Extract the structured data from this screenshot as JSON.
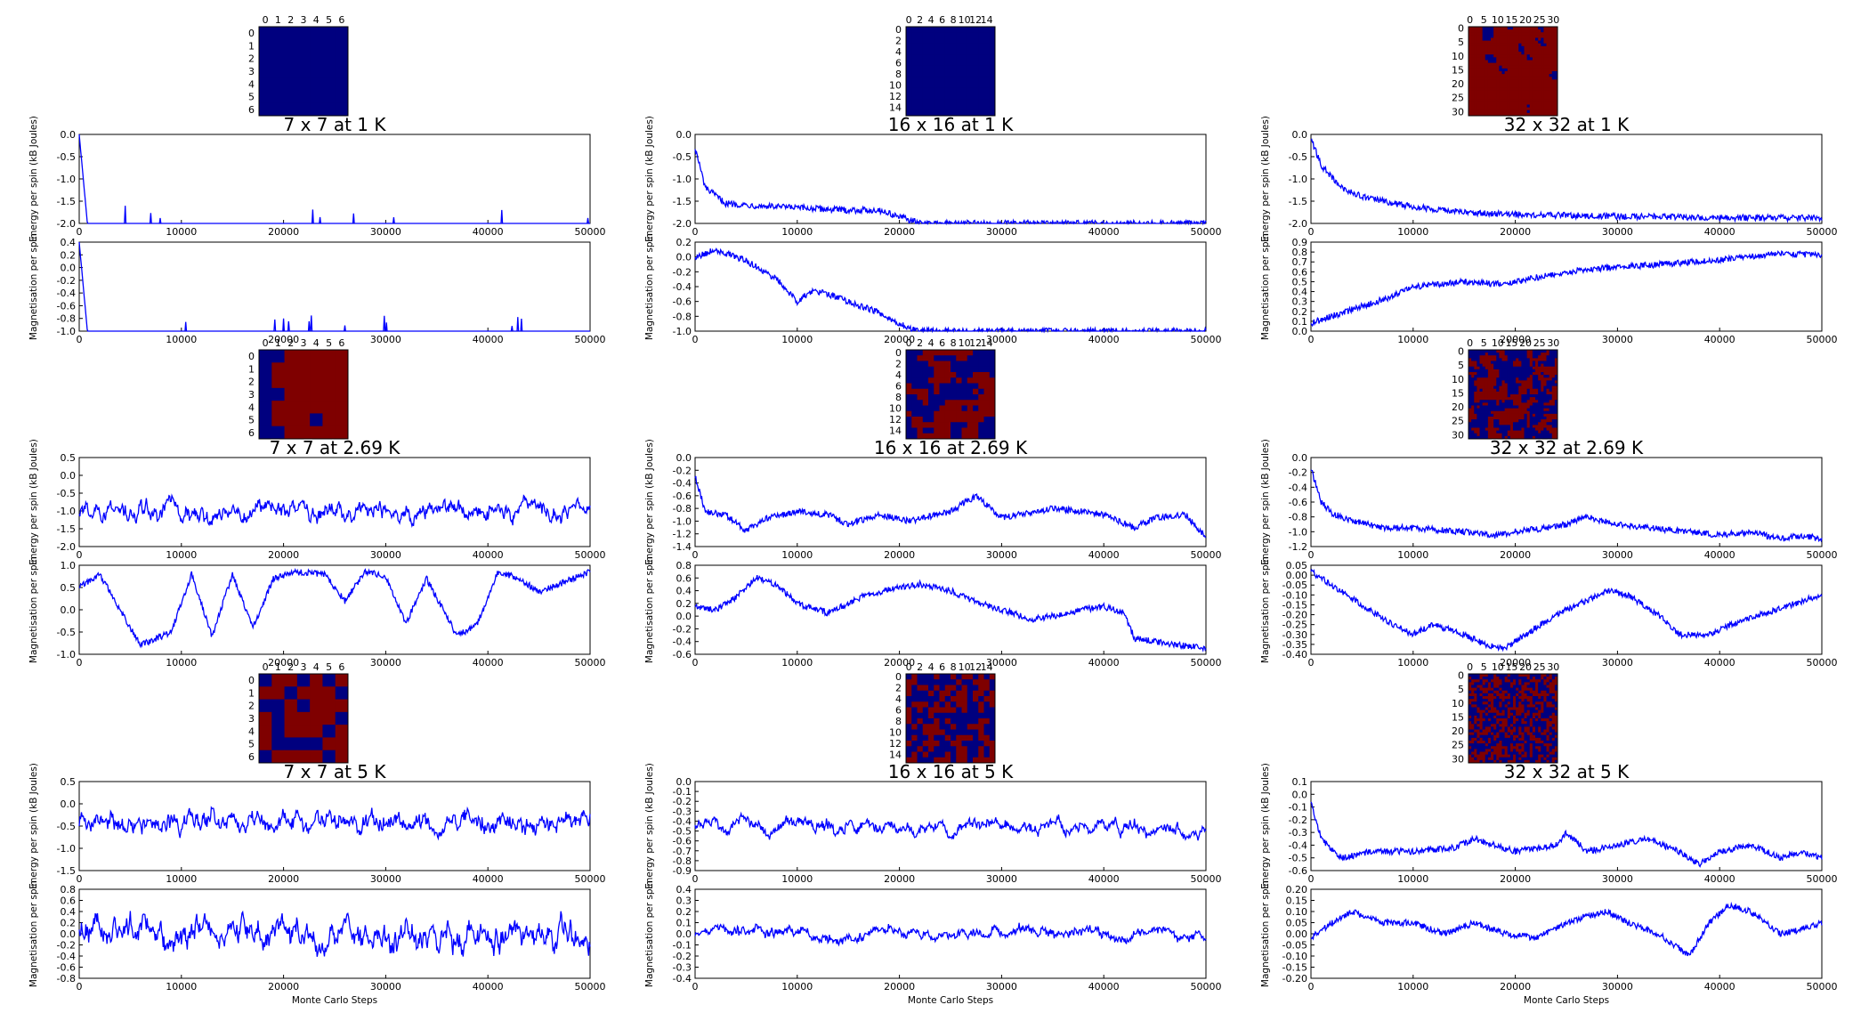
{
  "palette": {
    "spin_up": "#7f0000",
    "spin_down": "#00007f",
    "trace": "#0000ff"
  },
  "labels": {
    "energy": "Energy per spin (kB Joules)",
    "magnetisation": "Magnetisation per spin",
    "monte_carlo": "Monte Carlo Steps"
  },
  "chart_data": [
    {
      "id": "p00",
      "type": "heatmap+line",
      "title": "7 x 7 at 1 K",
      "L": 7,
      "T": 1,
      "lattice_state": "all spins down",
      "lattice_ticks": [
        "0",
        "1",
        "2",
        "3",
        "4",
        "5",
        "6"
      ],
      "energy": {
        "type": "line",
        "ylim": [
          -2.0,
          0.0
        ],
        "yticks": [
          "0.0",
          "-0.5",
          "-1.0",
          "-1.5",
          "-2.0"
        ],
        "baseline": -2.0,
        "settles_by": 800,
        "level": "stays at -2.0 with brief spikes"
      },
      "magnetisation": {
        "type": "line",
        "ylim": [
          -1.0,
          0.4
        ],
        "yticks": [
          "0.4",
          "0.2",
          "0.0",
          "-0.2",
          "-0.4",
          "-0.6",
          "-0.8",
          "-1.0"
        ],
        "baseline": -1.0,
        "settles_by": 800,
        "level": "stays at -1.0 with brief spikes"
      },
      "xlim": [
        0,
        50000
      ],
      "xticks": [
        "0",
        "10000",
        "20000",
        "30000",
        "40000",
        "50000"
      ]
    },
    {
      "id": "p01",
      "type": "heatmap+line",
      "title": "16 x 16 at 1 K",
      "L": 16,
      "T": 1,
      "lattice_state": "all spins down",
      "lattice_ticks": [
        "0",
        "2",
        "4",
        "6",
        "8",
        "10",
        "12",
        "14"
      ],
      "energy": {
        "type": "line",
        "ylim": [
          -2.0,
          0.0
        ],
        "yticks": [
          "0.0",
          "-0.5",
          "-1.0",
          "-1.5",
          "-2.0"
        ],
        "x": [
          0,
          1000,
          3000,
          6000,
          10000,
          15000,
          18000,
          20000,
          22000,
          50000
        ],
        "y": [
          -0.3,
          -1.2,
          -1.55,
          -1.6,
          -1.65,
          -1.7,
          -1.7,
          -1.85,
          -2.0,
          -2.0
        ]
      },
      "magnetisation": {
        "type": "line",
        "ylim": [
          -1.0,
          0.2
        ],
        "yticks": [
          "0.2",
          "0.0",
          "-0.2",
          "-0.4",
          "-0.6",
          "-0.8",
          "-1.0"
        ],
        "x": [
          0,
          2000,
          5000,
          8000,
          10000,
          11500,
          12500,
          15000,
          18000,
          20000,
          21000,
          22000,
          50000
        ],
        "y": [
          0.0,
          0.1,
          -0.05,
          -0.3,
          -0.6,
          -0.45,
          -0.48,
          -0.6,
          -0.75,
          -0.9,
          -0.97,
          -1.0,
          -1.0
        ]
      },
      "xlim": [
        0,
        50000
      ],
      "xticks": [
        "0",
        "10000",
        "20000",
        "30000",
        "40000",
        "50000"
      ]
    },
    {
      "id": "p02",
      "type": "heatmap+line",
      "title": "32 x 32 at 1 K",
      "L": 32,
      "T": 1,
      "lattice_state": "mostly spin up (red) with a few down (blue) domains",
      "lattice_ticks": [
        "0",
        "5",
        "10",
        "15",
        "20",
        "25",
        "30"
      ],
      "energy": {
        "type": "line",
        "ylim": [
          -2.0,
          0.0
        ],
        "yticks": [
          "0.0",
          "-0.5",
          "-1.0",
          "-1.5",
          "-2.0"
        ],
        "x": [
          0,
          1000,
          3000,
          5000,
          8000,
          10000,
          15000,
          20000,
          30000,
          40000,
          50000
        ],
        "y": [
          -0.1,
          -0.7,
          -1.2,
          -1.4,
          -1.55,
          -1.62,
          -1.75,
          -1.8,
          -1.84,
          -1.87,
          -1.88
        ]
      },
      "magnetisation": {
        "type": "line",
        "ylim": [
          0.0,
          0.9
        ],
        "yticks": [
          "0.9",
          "0.8",
          "0.7",
          "0.6",
          "0.5",
          "0.4",
          "0.3",
          "0.2",
          "0.1",
          "0.0"
        ],
        "x": [
          0,
          2000,
          5000,
          8000,
          10000,
          15000,
          18000,
          20000,
          25000,
          30000,
          35000,
          40000,
          45000,
          50000
        ],
        "y": [
          0.08,
          0.15,
          0.25,
          0.35,
          0.45,
          0.5,
          0.48,
          0.5,
          0.6,
          0.65,
          0.68,
          0.72,
          0.78,
          0.77
        ]
      },
      "xlim": [
        0,
        50000
      ],
      "xticks": [
        "0",
        "10000",
        "20000",
        "30000",
        "40000",
        "50000"
      ]
    },
    {
      "id": "p10",
      "type": "heatmap+line",
      "title": "7 x 7 at 2.69 K",
      "L": 7,
      "T": 2.69,
      "lattice_state": "mixed, mostly up (red)",
      "lattice_ticks": [
        "0",
        "1",
        "2",
        "3",
        "4",
        "5",
        "6"
      ],
      "energy": {
        "type": "line",
        "ylim": [
          -2.0,
          0.5
        ],
        "yticks": [
          "0.5",
          "0.0",
          "-0.5",
          "-1.0",
          "-1.5",
          "-2.0"
        ],
        "mean": -1.0,
        "spread": 0.45,
        "smooth": 2
      },
      "magnetisation": {
        "type": "line",
        "ylim": [
          -1.0,
          1.0
        ],
        "yticks": [
          "1.0",
          "0.5",
          "0.0",
          "-0.5",
          "-1.0"
        ],
        "x": [
          0,
          2000,
          4000,
          6000,
          9000,
          11000,
          13000,
          15000,
          17000,
          19000,
          21000,
          24000,
          26000,
          28000,
          30000,
          32000,
          34000,
          37000,
          39000,
          41000,
          43000,
          45000,
          50000
        ],
        "y": [
          0.5,
          0.8,
          0.0,
          -0.8,
          -0.5,
          0.8,
          -0.6,
          0.8,
          -0.4,
          0.7,
          0.85,
          0.8,
          0.2,
          0.85,
          0.75,
          -0.3,
          0.7,
          -0.6,
          -0.3,
          0.85,
          0.7,
          0.4,
          0.85
        ]
      },
      "xlim": [
        0,
        50000
      ],
      "xticks": [
        "0",
        "10000",
        "20000",
        "30000",
        "40000",
        "50000"
      ]
    },
    {
      "id": "p11",
      "type": "heatmap+line",
      "title": "16 x 16 at 2.69 K",
      "L": 16,
      "T": 2.69,
      "lattice_state": "mixed domains",
      "lattice_ticks": [
        "0",
        "2",
        "4",
        "6",
        "8",
        "10",
        "12",
        "14"
      ],
      "energy": {
        "type": "line",
        "ylim": [
          -1.4,
          0.0
        ],
        "yticks": [
          "0.0",
          "-0.2",
          "-0.4",
          "-0.6",
          "-0.8",
          "-1.0",
          "-1.2",
          "-1.4"
        ],
        "x": [
          0,
          1000,
          3000,
          5000,
          7000,
          10000,
          13000,
          15000,
          18000,
          21000,
          25000,
          27500,
          30000,
          35000,
          38000,
          40000,
          43000,
          45000,
          48000,
          50000
        ],
        "y": [
          -0.3,
          -0.85,
          -0.9,
          -1.15,
          -0.95,
          -0.85,
          -0.9,
          -1.05,
          -0.9,
          -1.0,
          -0.85,
          -0.6,
          -0.95,
          -0.8,
          -0.85,
          -0.9,
          -1.1,
          -0.95,
          -0.9,
          -1.25
        ]
      },
      "magnetisation": {
        "type": "line",
        "ylim": [
          -0.6,
          0.8
        ],
        "yticks": [
          "0.8",
          "0.6",
          "0.4",
          "0.2",
          "0.0",
          "-0.2",
          "-0.4",
          "-0.6"
        ],
        "x": [
          0,
          2000,
          4000,
          6000,
          8000,
          10000,
          13000,
          15000,
          17000,
          20000,
          22000,
          25000,
          27000,
          30000,
          33000,
          35000,
          38000,
          40000,
          42000,
          43000,
          45000,
          47000,
          50000
        ],
        "y": [
          0.15,
          0.1,
          0.3,
          0.6,
          0.5,
          0.2,
          0.05,
          0.2,
          0.35,
          0.45,
          0.5,
          0.4,
          0.25,
          0.1,
          -0.05,
          0.0,
          0.1,
          0.15,
          0.05,
          -0.35,
          -0.4,
          -0.45,
          -0.5
        ]
      },
      "xlim": [
        0,
        50000
      ],
      "xticks": [
        "0",
        "10000",
        "20000",
        "30000",
        "40000",
        "50000"
      ]
    },
    {
      "id": "p12",
      "type": "heatmap+line",
      "title": "32 x 32 at 2.69 K",
      "L": 32,
      "T": 2.69,
      "lattice_state": "mixed domains",
      "lattice_ticks": [
        "0",
        "5",
        "10",
        "15",
        "20",
        "25",
        "30"
      ],
      "energy": {
        "type": "line",
        "ylim": [
          -1.2,
          0.0
        ],
        "yticks": [
          "0.0",
          "-0.2",
          "-0.4",
          "-0.6",
          "-0.8",
          "-1.0",
          "-1.2"
        ],
        "x": [
          0,
          1000,
          2000,
          4000,
          7000,
          10000,
          15000,
          18000,
          20000,
          23000,
          25000,
          27000,
          30000,
          33000,
          37000,
          40000,
          43000,
          46000,
          48000,
          50000
        ],
        "y": [
          -0.15,
          -0.6,
          -0.75,
          -0.85,
          -0.95,
          -0.95,
          -1.0,
          -1.05,
          -1.0,
          -0.95,
          -0.9,
          -0.8,
          -0.9,
          -0.95,
          -1.0,
          -1.05,
          -1.0,
          -1.1,
          -1.05,
          -1.1
        ]
      },
      "magnetisation": {
        "type": "line",
        "ylim": [
          -0.4,
          0.05
        ],
        "yticks": [
          "0.05",
          "0.00",
          "-0.05",
          "-0.10",
          "-0.15",
          "-0.20",
          "-0.25",
          "-0.30",
          "-0.35",
          "-0.40"
        ],
        "x": [
          0,
          2000,
          5000,
          8000,
          10000,
          12000,
          15000,
          17000,
          19000,
          21000,
          24000,
          26000,
          29000,
          31000,
          34000,
          36000,
          39000,
          41000,
          44000,
          47000,
          50000
        ],
        "y": [
          0.02,
          -0.05,
          -0.15,
          -0.25,
          -0.3,
          -0.25,
          -0.3,
          -0.35,
          -0.37,
          -0.3,
          -0.2,
          -0.15,
          -0.08,
          -0.1,
          -0.2,
          -0.3,
          -0.3,
          -0.25,
          -0.2,
          -0.15,
          -0.1
        ]
      },
      "xlim": [
        0,
        50000
      ],
      "xticks": [
        "0",
        "10000",
        "20000",
        "30000",
        "40000",
        "50000"
      ]
    },
    {
      "id": "p20",
      "type": "heatmap+line",
      "title": "7 x 7 at 5 K",
      "L": 7,
      "T": 5,
      "lattice_state": "random",
      "lattice_ticks": [
        "0",
        "1",
        "2",
        "3",
        "4",
        "5",
        "6"
      ],
      "energy": {
        "type": "line",
        "ylim": [
          -1.5,
          0.5
        ],
        "yticks": [
          "0.5",
          "0.0",
          "-0.5",
          "-1.0",
          "-1.5"
        ],
        "mean": -0.4,
        "spread": 0.4,
        "smooth": 1
      },
      "magnetisation": {
        "type": "line",
        "ylim": [
          -0.8,
          0.8
        ],
        "yticks": [
          "0.8",
          "0.6",
          "0.4",
          "0.2",
          "0.0",
          "-0.2",
          "-0.4",
          "-0.6",
          "-0.8"
        ],
        "mean": 0.0,
        "spread": 0.45,
        "smooth": 2
      },
      "xlim": [
        0,
        50000
      ],
      "xticks": [
        "0",
        "10000",
        "20000",
        "30000",
        "40000",
        "50000"
      ],
      "xlabel": "Monte Carlo Steps"
    },
    {
      "id": "p21",
      "type": "heatmap+line",
      "title": "16 x 16 at 5 K",
      "L": 16,
      "T": 5,
      "lattice_state": "random",
      "lattice_ticks": [
        "0",
        "2",
        "4",
        "6",
        "8",
        "10",
        "12",
        "14"
      ],
      "energy": {
        "type": "line",
        "ylim": [
          -0.9,
          0.0
        ],
        "yticks": [
          "0.0",
          "-0.1",
          "-0.2",
          "-0.3",
          "-0.4",
          "-0.5",
          "-0.6",
          "-0.7",
          "-0.8",
          "-0.9"
        ],
        "mean": -0.45,
        "spread": 0.15,
        "smooth": 3
      },
      "magnetisation": {
        "type": "line",
        "ylim": [
          -0.4,
          0.4
        ],
        "yticks": [
          "0.4",
          "0.3",
          "0.2",
          "0.1",
          "0.0",
          "-0.1",
          "-0.2",
          "-0.3",
          "-0.4"
        ],
        "mean": 0.0,
        "spread": 0.13,
        "smooth": 4
      },
      "xlim": [
        0,
        50000
      ],
      "xticks": [
        "0",
        "10000",
        "20000",
        "30000",
        "40000",
        "50000"
      ],
      "xlabel": "Monte Carlo Steps"
    },
    {
      "id": "p22",
      "type": "heatmap+line",
      "title": "32 x 32 at 5 K",
      "L": 32,
      "T": 5,
      "lattice_state": "random",
      "lattice_ticks": [
        "0",
        "5",
        "10",
        "15",
        "20",
        "25",
        "30"
      ],
      "energy": {
        "type": "line",
        "ylim": [
          -0.6,
          0.1
        ],
        "yticks": [
          "0.1",
          "0.0",
          "-0.1",
          "-0.2",
          "-0.3",
          "-0.4",
          "-0.5",
          "-0.6"
        ],
        "x": [
          0,
          1000,
          3000,
          6000,
          10000,
          14000,
          16000,
          20000,
          24000,
          25000,
          27000,
          30000,
          33000,
          36000,
          38000,
          40000,
          43000,
          46000,
          48000,
          50000
        ],
        "y": [
          -0.05,
          -0.35,
          -0.5,
          -0.45,
          -0.45,
          -0.42,
          -0.35,
          -0.45,
          -0.4,
          -0.3,
          -0.45,
          -0.4,
          -0.35,
          -0.45,
          -0.55,
          -0.45,
          -0.4,
          -0.5,
          -0.45,
          -0.5
        ]
      },
      "magnetisation": {
        "type": "line",
        "ylim": [
          -0.2,
          0.2
        ],
        "yticks": [
          "0.20",
          "0.15",
          "0.10",
          "0.05",
          "0.00",
          "-0.05",
          "-0.10",
          "-0.15",
          "-0.20"
        ],
        "x": [
          0,
          2000,
          4000,
          7000,
          10000,
          13000,
          16000,
          19000,
          22000,
          25000,
          27000,
          29000,
          31000,
          34000,
          37000,
          39000,
          41000,
          43000,
          46000,
          48000,
          50000
        ],
        "y": [
          -0.02,
          0.05,
          0.1,
          0.05,
          0.05,
          0.0,
          0.05,
          0.0,
          -0.02,
          0.05,
          0.08,
          0.1,
          0.05,
          0.0,
          -0.1,
          0.05,
          0.13,
          0.1,
          0.0,
          0.02,
          0.05
        ]
      },
      "xlim": [
        0,
        50000
      ],
      "xticks": [
        "0",
        "10000",
        "20000",
        "30000",
        "40000",
        "50000"
      ],
      "xlabel": "Monte Carlo Steps"
    }
  ]
}
